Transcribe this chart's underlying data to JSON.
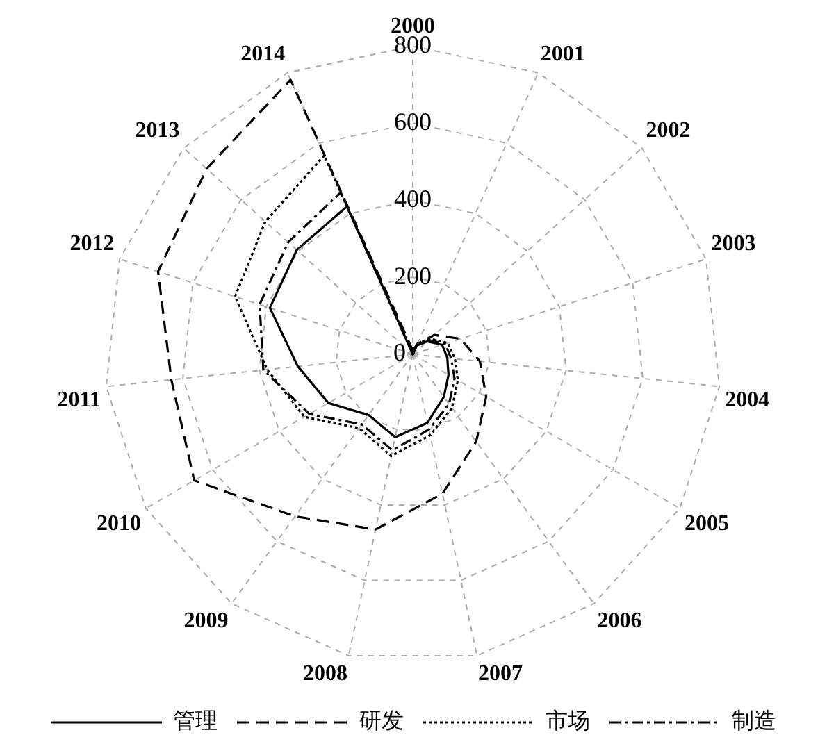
{
  "chart_data": {
    "type": "radar",
    "categories": [
      "2000",
      "2001",
      "2002",
      "2003",
      "2004",
      "2005",
      "2006",
      "2007",
      "2008",
      "2009",
      "2010",
      "2011",
      "2012",
      "2013",
      "2014"
    ],
    "series": [
      {
        "name": "管理",
        "color": "#000000",
        "line_style": "solid",
        "values": [
          0,
          25,
          50,
          80,
          90,
          107,
          137,
          182,
          220,
          195,
          253,
          300,
          390,
          405,
          420
        ]
      },
      {
        "name": "研发",
        "color": "#000000",
        "line_style": "dashed",
        "values": [
          10,
          30,
          75,
          130,
          175,
          220,
          280,
          370,
          465,
          520,
          655,
          630,
          695,
          720,
          780
        ]
      },
      {
        "name": "市场",
        "color": "#000000",
        "line_style": "dotted",
        "values": [
          0,
          30,
          60,
          95,
          110,
          135,
          173,
          215,
          270,
          237,
          325,
          380,
          485,
          515,
          565
        ]
      },
      {
        "name": "制造",
        "color": "#000000",
        "line_style": "dashdot",
        "values": [
          0,
          28,
          55,
          88,
          100,
          125,
          160,
          200,
          255,
          225,
          310,
          390,
          418,
          435,
          460
        ]
      }
    ],
    "ylim": [
      0,
      800
    ],
    "yticks": [
      0,
      200,
      400,
      600,
      800
    ],
    "grid": true,
    "legend": "bottom",
    "marker": "none"
  }
}
